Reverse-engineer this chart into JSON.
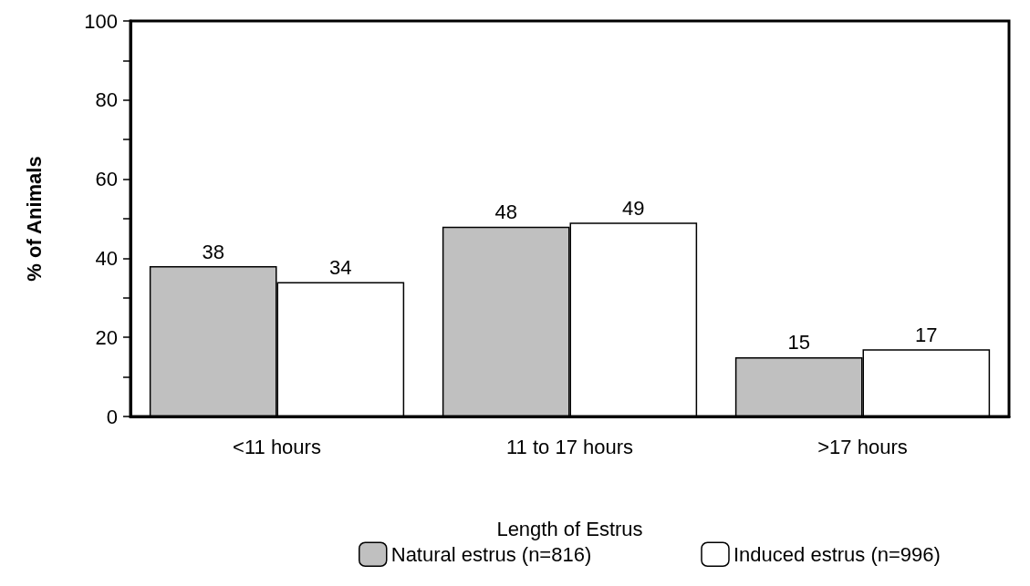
{
  "chart_data": {
    "type": "bar",
    "xlabel": "Length of Estrus",
    "ylabel": "% of Animals",
    "categories": [
      "<11 hours",
      "11 to 17 hours",
      ">17 hours"
    ],
    "series": [
      {
        "name": "Natural estrus (n=816)",
        "color": "#c0c0c0",
        "values": [
          38,
          48,
          15
        ]
      },
      {
        "name": "Induced estrus (n=996)",
        "color": "#ffffff",
        "values": [
          34,
          49,
          17
        ]
      }
    ],
    "ylim": [
      0,
      100
    ],
    "yticks": [
      0,
      {
        "value": 10,
        "label": null
      },
      20,
      {
        "value": 30,
        "label": null
      },
      40,
      {
        "value": 50,
        "label": null
      },
      60,
      {
        "value": 70,
        "label": null
      },
      80,
      {
        "value": 90,
        "label": null
      },
      100
    ],
    "data_labels": true,
    "legend": "bottom",
    "grid": false
  }
}
